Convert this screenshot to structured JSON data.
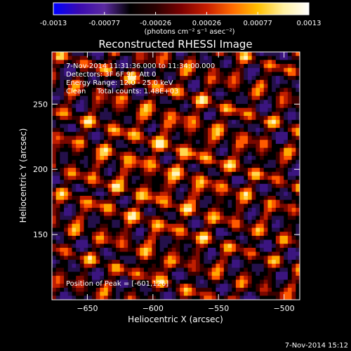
{
  "colorbar": {
    "tick_labels": [
      "-0.0013",
      "-0.00077",
      "-0.00026",
      "0.00026",
      "0.00077",
      "0.0013"
    ],
    "unit_label": "(photons cm⁻² s⁻¹ asec⁻²)",
    "colormap_stops": [
      "#0000ff",
      "#3a0ab0",
      "#5b2aa0",
      "#000000",
      "#2a0000",
      "#7a0000",
      "#c81e00",
      "#ff6a00",
      "#ffc000",
      "#fff0a0",
      "#ffffff"
    ]
  },
  "image": {
    "title": "Reconstructed RHESSI Image",
    "info_lines": [
      "7-Nov-2014 11:31:36.000 to 11:34:00.000",
      "Detectors: 3F 6F 9F, Att 0",
      "Energy Range: 12.0 - 25.0 keV",
      "Clean     Total counts: 1.48E+03"
    ],
    "peak_label": "Position of Peak = [-601,126]",
    "xlabel": "Heliocentric X (arcsec)",
    "ylabel": "Heliocentric Y (arcsec)",
    "xticks": [
      -650,
      -600,
      -550,
      -500
    ],
    "yticks": [
      150,
      200,
      250
    ],
    "xlim": [
      -677,
      -488
    ],
    "ylim": [
      100,
      290
    ],
    "peak_x": -601,
    "peak_y": 126
  },
  "footer": {
    "timestamp": "7-Nov-2014 15:12"
  }
}
